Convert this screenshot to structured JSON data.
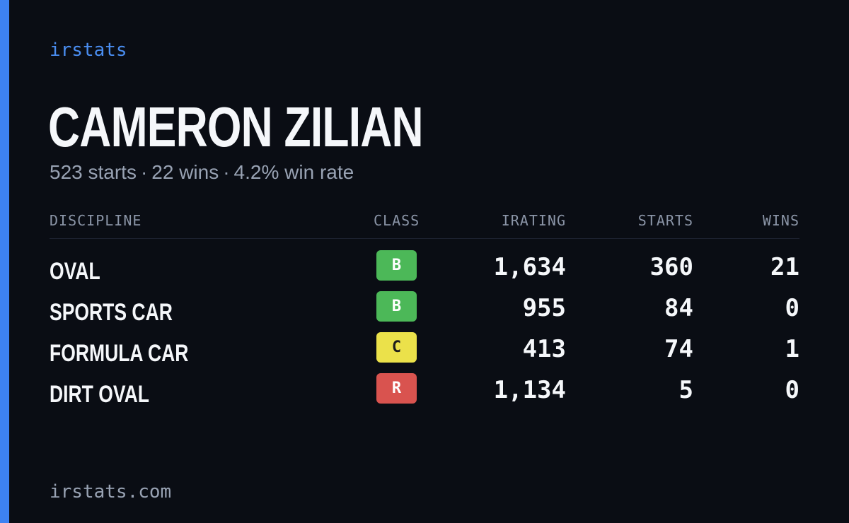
{
  "brand": "irstats",
  "driver": {
    "name": "CAMERON ZILIAN",
    "summary": {
      "starts": "523 starts",
      "wins": "22 wins",
      "win_rate": "4.2% win rate",
      "separator": "·"
    }
  },
  "table": {
    "headers": {
      "discipline": "DISCIPLINE",
      "class": "CLASS",
      "irating": "IRATING",
      "starts": "STARTS",
      "wins": "WINS"
    },
    "rows": [
      {
        "discipline": "OVAL",
        "class": "B",
        "class_color": "#4cb858",
        "class_text_color": "#ffffff",
        "irating": "1,634",
        "starts": "360",
        "wins": "21"
      },
      {
        "discipline": "SPORTS CAR",
        "class": "B",
        "class_color": "#4cb858",
        "class_text_color": "#ffffff",
        "irating": "955",
        "starts": "84",
        "wins": "0"
      },
      {
        "discipline": "FORMULA CAR",
        "class": "C",
        "class_color": "#ebe14a",
        "class_text_color": "#1c1c1c",
        "irating": "413",
        "starts": "74",
        "wins": "1"
      },
      {
        "discipline": "DIRT OVAL",
        "class": "R",
        "class_color": "#d9534f",
        "class_text_color": "#ffffff",
        "irating": "1,134",
        "starts": "5",
        "wins": "0"
      }
    ]
  },
  "footer": "irstats.com",
  "colors": {
    "background": "#0a0d14",
    "accent": "#3d82f2"
  }
}
